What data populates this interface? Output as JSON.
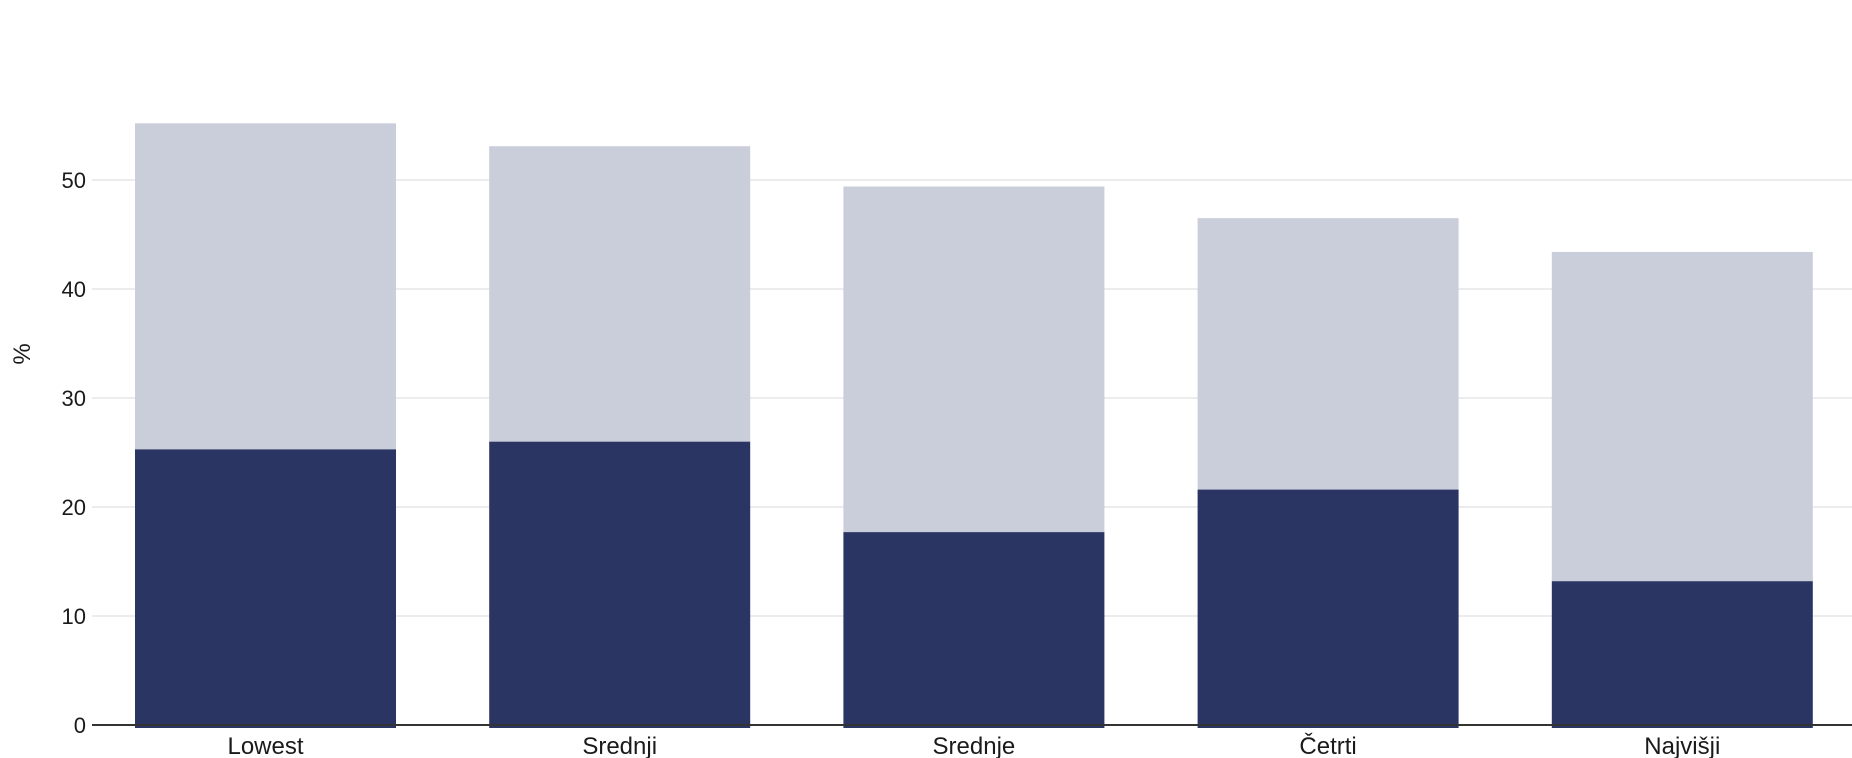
{
  "chart_data": {
    "type": "bar",
    "stacked": true,
    "categories": [
      "Lowest",
      "Srednji",
      "Srednje",
      "Četrti",
      "Najvišji"
    ],
    "series": [
      {
        "color": "#2a3563",
        "values": [
          25.3,
          26.0,
          17.7,
          21.6,
          13.2
        ]
      },
      {
        "color": "#cacdda",
        "values": [
          29.9,
          27.1,
          31.7,
          24.9,
          30.2
        ]
      }
    ],
    "xlabel": "",
    "ylabel": "%",
    "ylim": [
      0,
      55
    ],
    "yticks": [
      0,
      10,
      20,
      30,
      40,
      50
    ],
    "grid": true,
    "legend": "none"
  }
}
